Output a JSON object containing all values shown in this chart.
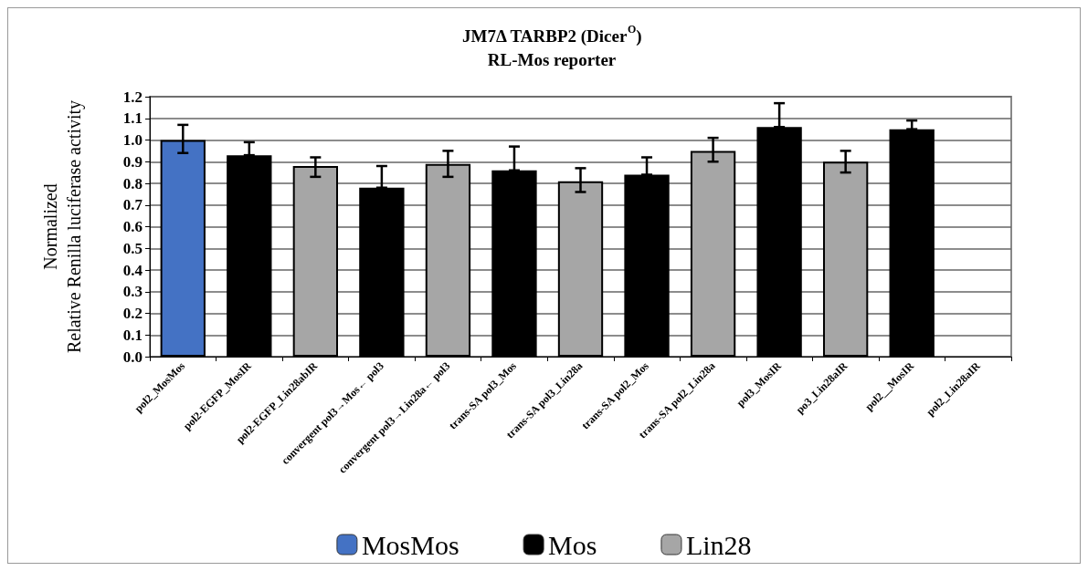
{
  "chart_data": {
    "type": "bar",
    "title": "JM7Δ TARBP2 (Dicer$^{O}$)\nRL-Mos reporter",
    "ylabel": "Normalized\nRelative Renilla luciferase activity",
    "categories": [
      "pol2_MosMos",
      "pol2-EGFP_MosIR",
      "pol2-EGFP_Lin28abIR",
      "convergent pol3→Mos← pol3",
      "convergent pol3→Lin28a← pol3",
      "trans-SA pol3_Mos",
      "trans-SA pol3_Lin28a",
      "trans-SA pol2_Mos",
      "trans-SA pol2_Lin28a",
      "pol3_MosIR",
      "po3_Lin28aIR",
      "pol2__MosIR",
      "pol2_Lin28aIR"
    ],
    "series": [
      {
        "name": "MosMos",
        "color": "#4472c4",
        "values": [
          1.0,
          null,
          null,
          null,
          null,
          null,
          null,
          null,
          null,
          null,
          null,
          null,
          null
        ],
        "errors": [
          [
            0.94,
            1.07
          ],
          null,
          null,
          null,
          null,
          null,
          null,
          null,
          null,
          null,
          null,
          null,
          null
        ]
      },
      {
        "name": "Mos",
        "color": "#000000",
        "values": [
          null,
          0.93,
          null,
          0.78,
          null,
          0.86,
          null,
          0.84,
          null,
          1.06,
          null,
          1.05,
          null
        ],
        "errors": [
          null,
          [
            0.93,
            0.99
          ],
          null,
          [
            0.78,
            0.88
          ],
          null,
          [
            0.86,
            0.97
          ],
          null,
          [
            0.84,
            0.92
          ],
          null,
          [
            1.06,
            1.17
          ],
          null,
          [
            1.05,
            1.09
          ],
          null
        ]
      },
      {
        "name": "Lin28",
        "color": "#a6a6a6",
        "values": [
          null,
          null,
          0.88,
          null,
          0.89,
          null,
          0.81,
          null,
          0.95,
          null,
          0.9,
          null,
          null
        ],
        "errors": [
          null,
          null,
          [
            0.83,
            0.92
          ],
          null,
          [
            0.83,
            0.95
          ],
          null,
          [
            0.76,
            0.87
          ],
          null,
          [
            0.9,
            1.01
          ],
          null,
          [
            0.85,
            0.95
          ],
          null,
          null
        ]
      }
    ],
    "ylim": [
      0,
      1.2
    ],
    "yticks": [
      {
        "value": 0,
        "label": "0.0"
      },
      0.1,
      0.2,
      0.3,
      0.4,
      0.5,
      0.6,
      0.7,
      0.8,
      0.9,
      {
        "value": 1,
        "label": "1.0"
      },
      1.1,
      1.2
    ],
    "grid": "y",
    "legend": "bottom"
  }
}
